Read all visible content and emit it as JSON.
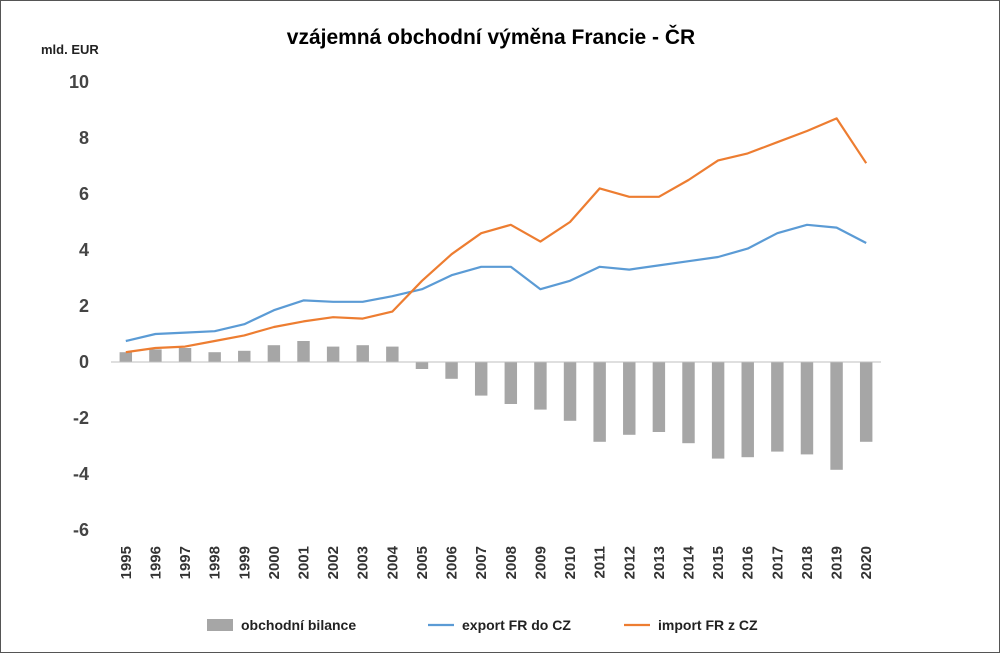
{
  "chart_data": {
    "type": "bar+line",
    "title": "vzájemná obchodní výměna Francie - ČR",
    "ylabel": "mld. EUR",
    "xlabel": "",
    "ylim": [
      -6,
      10
    ],
    "yticks": [
      10,
      8,
      6,
      4,
      2,
      0,
      -2,
      -4,
      -6
    ],
    "grid": false,
    "legend_position": "bottom",
    "categories": [
      "1995",
      "1996",
      "1997",
      "1998",
      "1999",
      "2000",
      "2001",
      "2002",
      "2003",
      "2004",
      "2005",
      "2006",
      "2007",
      "2008",
      "2009",
      "2010",
      "2011",
      "2012",
      "2013",
      "2014",
      "2015",
      "2016",
      "2017",
      "2018",
      "2019",
      "2020"
    ],
    "series": [
      {
        "name": "obchodní bilance",
        "type": "bar",
        "color": "#a6a6a6",
        "values": [
          0.35,
          0.45,
          0.5,
          0.35,
          0.4,
          0.6,
          0.75,
          0.55,
          0.6,
          0.55,
          -0.25,
          -0.6,
          -1.2,
          -1.5,
          -1.7,
          -2.1,
          -2.85,
          -2.6,
          -2.5,
          -2.9,
          -3.45,
          -3.4,
          -3.2,
          -3.3,
          -3.85,
          -2.85
        ]
      },
      {
        "name": "export FR do CZ",
        "type": "line",
        "color": "#5b9bd5",
        "values": [
          0.75,
          1.0,
          1.05,
          1.1,
          1.35,
          1.85,
          2.2,
          2.15,
          2.15,
          2.35,
          2.6,
          3.1,
          3.4,
          3.4,
          2.6,
          2.9,
          3.4,
          3.3,
          3.45,
          3.6,
          3.75,
          4.05,
          4.6,
          4.9,
          4.8,
          4.25
        ]
      },
      {
        "name": "import FR z CZ",
        "type": "line",
        "color": "#ed7d31",
        "values": [
          0.35,
          0.5,
          0.55,
          0.75,
          0.95,
          1.25,
          1.45,
          1.6,
          1.55,
          1.8,
          2.9,
          3.85,
          4.6,
          4.9,
          4.3,
          5.0,
          6.2,
          5.9,
          5.9,
          6.5,
          7.2,
          7.45,
          7.85,
          8.25,
          8.7,
          7.1
        ]
      }
    ]
  }
}
